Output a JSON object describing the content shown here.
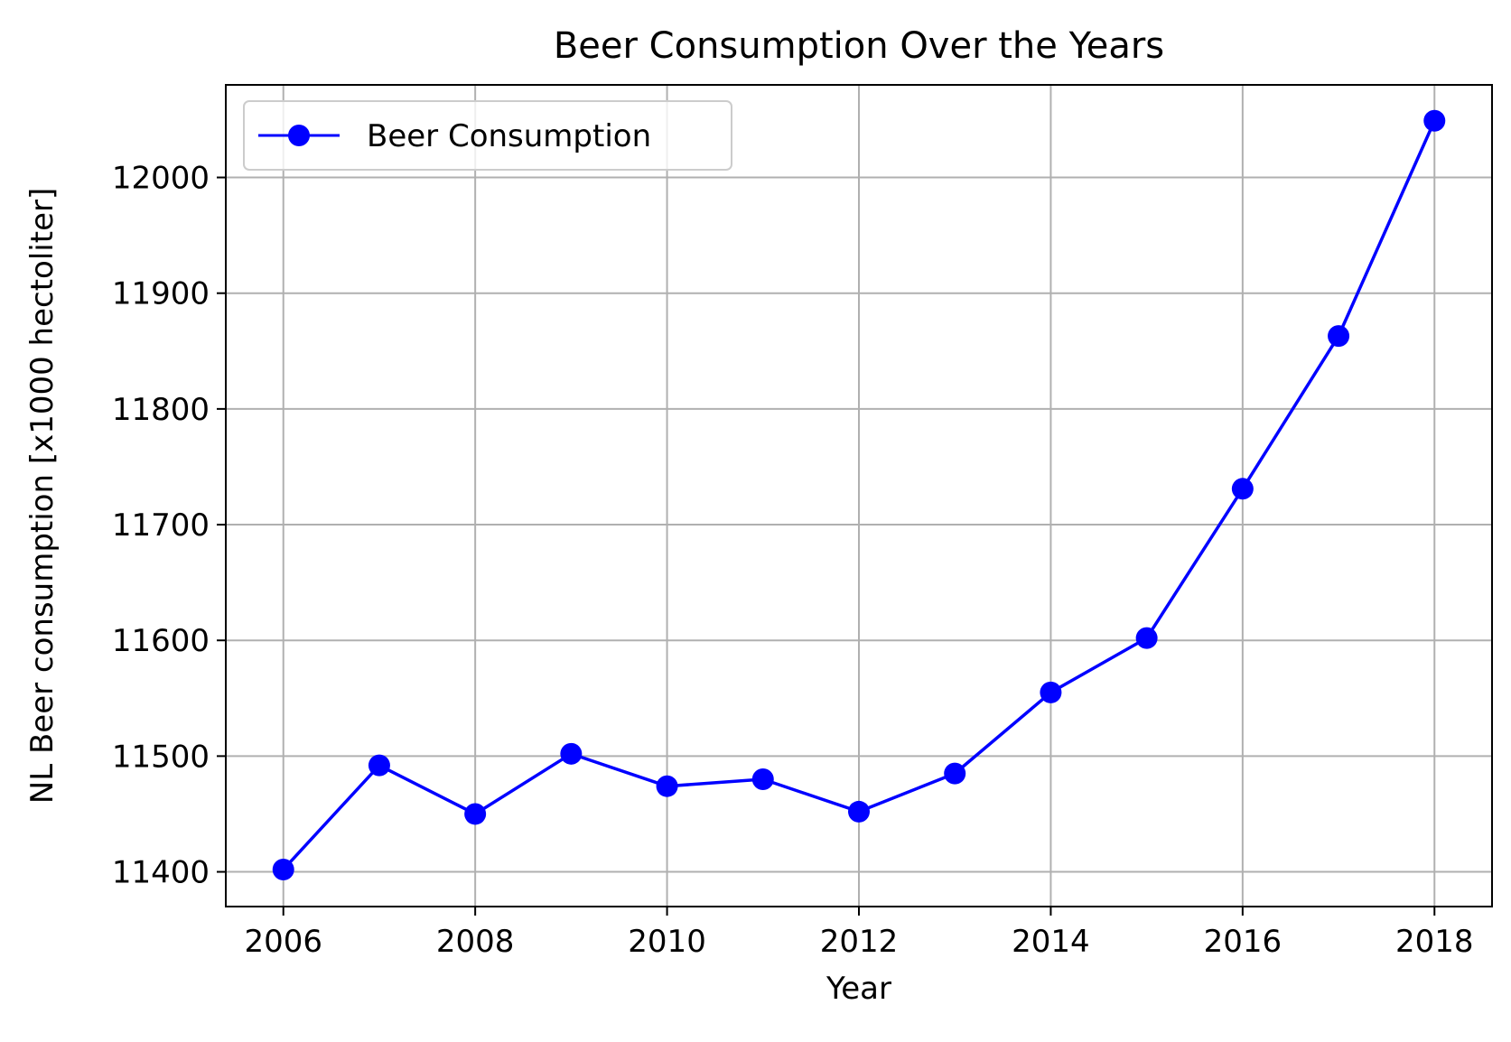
{
  "chart_data": {
    "type": "line",
    "title": "Beer Consumption Over the Years",
    "xlabel": "Year",
    "ylabel": "NL Beer consumption [x1000 hectoliter]",
    "x": [
      2006,
      2007,
      2008,
      2009,
      2010,
      2011,
      2012,
      2013,
      2014,
      2015,
      2016,
      2017,
      2018
    ],
    "series": [
      {
        "name": "Beer Consumption",
        "values": [
          11402,
          11492,
          11450,
          11502,
          11474,
          11480,
          11452,
          11485,
          11555,
          11602,
          11731,
          11863,
          12049
        ],
        "color": "#0000ff",
        "marker": "circle"
      }
    ],
    "xticks": [
      2006,
      2008,
      2010,
      2012,
      2014,
      2016,
      2018
    ],
    "yticks": [
      11400,
      11500,
      11600,
      11700,
      11800,
      11900,
      12000
    ],
    "xlim": [
      2005.4,
      2018.6
    ],
    "ylim": [
      11370,
      12080
    ],
    "grid": true,
    "grid_color": "#b0b0b0",
    "legend_position": "top-left"
  }
}
